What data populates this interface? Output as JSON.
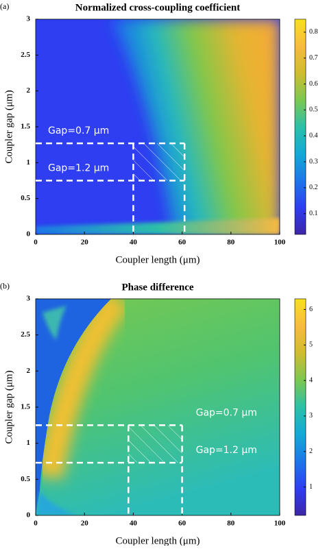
{
  "chart_data": [
    {
      "type": "heatmap",
      "panel_label": "(a)",
      "title": "Normalized cross-coupling coefficient",
      "xlabel": "Coupler length (μm)",
      "ylabel": "Coupler gap (μm)",
      "xlim": [
        0,
        100
      ],
      "xticks": [
        0,
        20,
        40,
        60,
        80,
        100
      ],
      "ylim": [
        0,
        3
      ],
      "yticks": [
        0,
        0.5,
        1,
        1.5,
        2,
        2.5,
        3
      ],
      "clim": [
        0.02,
        0.85
      ],
      "cticks": [
        0.1,
        0.2,
        0.3,
        0.4,
        0.5,
        0.6,
        0.7,
        0.8
      ],
      "colormap": [
        "#3e26a8",
        "#2e3ef0",
        "#1c78e8",
        "#14a8d8",
        "#2cc0a8",
        "#7cc850",
        "#d0bc30",
        "#f8ba40",
        "#f8e020"
      ],
      "region": {
        "x": [
          40,
          61
        ],
        "y": [
          0.75,
          1.27
        ]
      },
      "annotations": [
        "Gap=0.7 μm",
        "Gap=1.2 μm"
      ]
    },
    {
      "type": "heatmap",
      "panel_label": "(b)",
      "title": "Phase difference",
      "xlabel": "Coupler length (μm)",
      "ylabel": "Coupler gap (μm)",
      "xlim": [
        0,
        100
      ],
      "xticks": [
        0,
        20,
        40,
        60,
        80,
        100
      ],
      "ylim": [
        0,
        3
      ],
      "yticks": [
        0,
        0.5,
        1,
        1.5,
        2,
        2.5,
        3
      ],
      "clim": [
        0.2,
        6.3
      ],
      "cticks": [
        1,
        2,
        3,
        4,
        5,
        6
      ],
      "colormap": [
        "#3e26a8",
        "#2e3ef0",
        "#1c78e8",
        "#14a8d8",
        "#2cc0a8",
        "#7cc850",
        "#d0bc30",
        "#f8ba40",
        "#f8e020"
      ],
      "region": {
        "x": [
          38,
          60
        ],
        "y": [
          0.73,
          1.25
        ]
      },
      "annotations": [
        "Gap=0.7 μm",
        "Gap=1.2 μm"
      ]
    }
  ]
}
